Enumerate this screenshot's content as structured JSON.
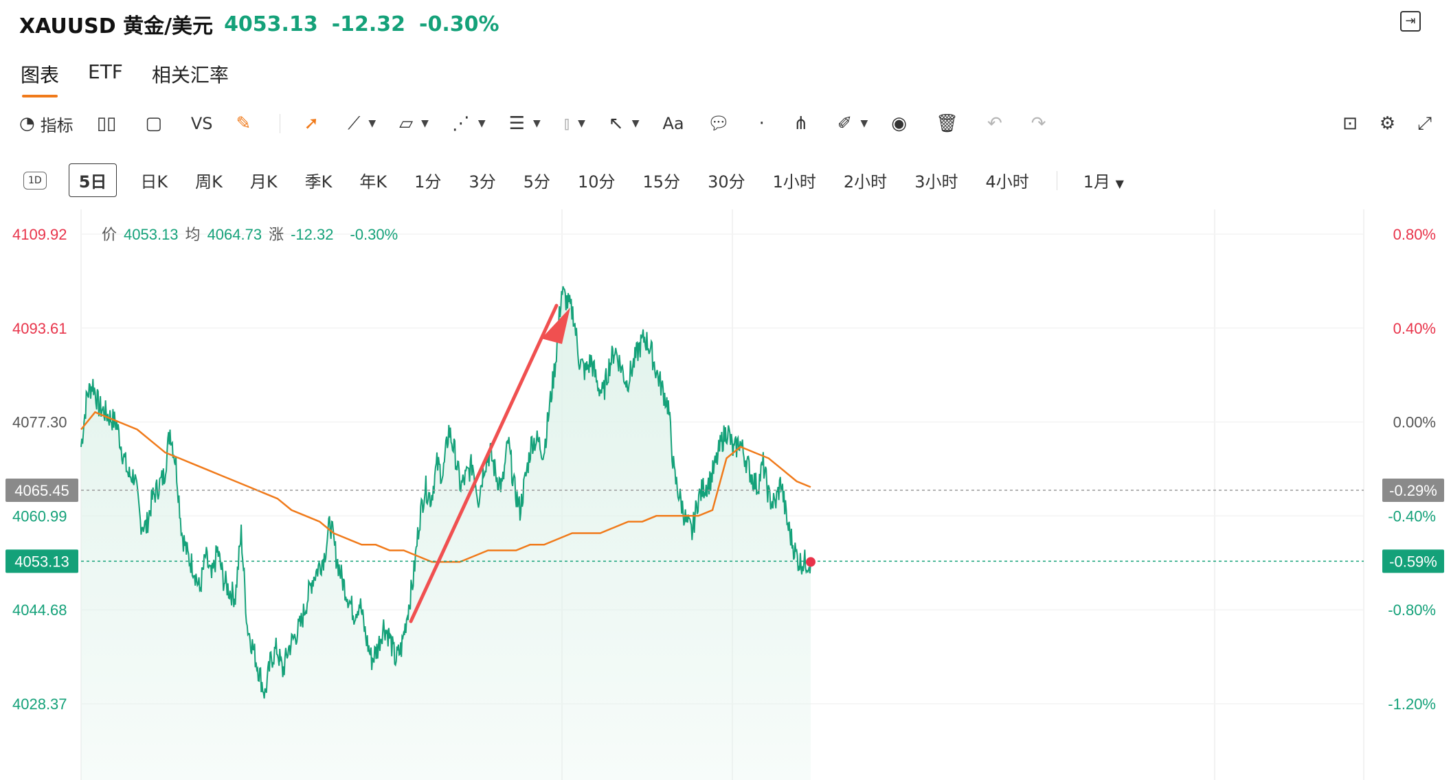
{
  "header": {
    "symbol": "XAUUSD 黄金/美元",
    "price": "4053.13",
    "change": "-12.32",
    "change_pct": "-0.30%"
  },
  "tabs": [
    "图表",
    "ETF",
    "相关汇率"
  ],
  "toolbar": {
    "indicator_label": "指标",
    "vs_label": "VS",
    "text_label": "Aa"
  },
  "periods": [
    "1D",
    "5日",
    "日K",
    "周K",
    "月K",
    "季K",
    "年K",
    "1分",
    "3分",
    "5分",
    "10分",
    "15分",
    "30分",
    "1小时",
    "2小时",
    "3小时",
    "4小时",
    "1月"
  ],
  "legend": {
    "price_label": "价",
    "price_value": "4053.13",
    "avg_label": "均",
    "avg_value": "4064.73",
    "chg_label": "涨",
    "chg_value": "-12.32",
    "chg_pct": "-0.30%"
  },
  "colors": {
    "up": "#e8334a",
    "down": "#14a179",
    "avg_line": "#f07a1a",
    "area_fill": "#dff2ea",
    "arrow": "#f05050"
  },
  "chart_data": {
    "type": "line",
    "y_ticks_left": [
      "4109.92",
      "4093.61",
      "4077.30",
      "4060.99",
      "4044.68",
      "4028.37"
    ],
    "y_ticks_right": [
      "0.80%",
      "0.40%",
      "0.00%",
      "-0.40%",
      "-0.80%",
      "-1.20%"
    ],
    "ylim": [
      4024,
      4113
    ],
    "prev_close": 4077.3,
    "reference_labels": [
      {
        "left": "4065.45",
        "right": "-0.29%",
        "value": 4065.45
      },
      {
        "left": "4053.13",
        "right": "-0.59%",
        "value": 4053.13
      }
    ],
    "series": [
      {
        "name": "价",
        "values": [
          4073,
          4082,
          4084,
          4080,
          4079,
          4078,
          4077,
          4072,
          4068,
          4068,
          4060,
          4059,
          4064,
          4066,
          4068,
          4076,
          4070,
          4058,
          4054,
          4052,
          4048,
          4054,
          4050,
          4055,
          4050,
          4048,
          4047,
          4058,
          4042,
          4038,
          4034,
          4030,
          4036,
          4038,
          4034,
          4038,
          4040,
          4042,
          4046,
          4050,
          4052,
          4054,
          4060,
          4054,
          4050,
          4047,
          4044,
          4046,
          4040,
          4036,
          4038,
          4042,
          4040,
          4036,
          4038,
          4044,
          4050,
          4060,
          4066,
          4064,
          4070,
          4068,
          4076,
          4072,
          4066,
          4068,
          4070,
          4064,
          4070,
          4072,
          4068,
          4066,
          4074,
          4066,
          4062,
          4068,
          4074,
          4074,
          4072,
          4080,
          4088,
          4100,
          4098,
          4096,
          4088,
          4086,
          4088,
          4084,
          4082,
          4087,
          4090,
          4087,
          4084,
          4087,
          4090,
          4092,
          4090,
          4086,
          4083,
          4080,
          4068,
          4064,
          4060,
          4058,
          4064,
          4066,
          4067,
          4070,
          4074,
          4076,
          4072,
          4074,
          4071,
          4068,
          4066,
          4070,
          4064,
          4063,
          4067,
          4060,
          4056,
          4053,
          4053,
          4053
        ],
        "color": "#14a179"
      },
      {
        "name": "均",
        "values": [
          4076,
          4079,
          4078,
          4077,
          4076,
          4074,
          4072,
          4071,
          4070,
          4069,
          4068,
          4067,
          4066,
          4065,
          4064,
          4062,
          4061,
          4060,
          4058,
          4057,
          4056,
          4056,
          4055,
          4055,
          4054,
          4053,
          4053,
          4053,
          4054,
          4055,
          4055,
          4055,
          4056,
          4056,
          4057,
          4058,
          4058,
          4058,
          4059,
          4060,
          4060,
          4061,
          4061,
          4061,
          4061,
          4062,
          4071,
          4073,
          4072,
          4071,
          4069,
          4067,
          4066
        ],
        "color": "#f07a1a"
      }
    ]
  }
}
